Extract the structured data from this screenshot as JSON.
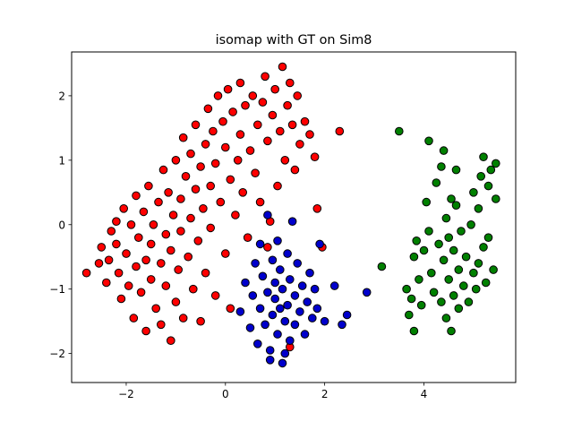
{
  "chart_data": {
    "type": "scatter",
    "title": "isomap with GT on Sim8",
    "xlabel": "",
    "ylabel": "",
    "xlim": [
      -3.1,
      5.85
    ],
    "ylim": [
      -2.45,
      2.68
    ],
    "xticks": [
      -2,
      0,
      2,
      4
    ],
    "xtick_labels": [
      "−2",
      "0",
      "2",
      "4"
    ],
    "yticks": [
      -2,
      -1,
      0,
      1,
      2
    ],
    "ytick_labels": [
      "−2",
      "−1",
      "0",
      "1",
      "2"
    ],
    "grid": false,
    "legend": "none",
    "series": [
      {
        "color": "#ff0000",
        "points": [
          [
            -2.8,
            -0.75
          ],
          [
            -2.55,
            -0.6
          ],
          [
            -2.5,
            -0.35
          ],
          [
            -2.4,
            -0.9
          ],
          [
            -2.35,
            -0.55
          ],
          [
            -2.3,
            -0.1
          ],
          [
            -2.2,
            0.05
          ],
          [
            -2.2,
            -0.3
          ],
          [
            -2.15,
            -0.75
          ],
          [
            -2.1,
            -1.15
          ],
          [
            -2.05,
            0.25
          ],
          [
            -2.0,
            -0.45
          ],
          [
            -1.95,
            -0.95
          ],
          [
            -1.9,
            0.0
          ],
          [
            -1.85,
            -1.45
          ],
          [
            -1.8,
            -0.65
          ],
          [
            -1.8,
            0.45
          ],
          [
            -1.75,
            -0.2
          ],
          [
            -1.7,
            -1.05
          ],
          [
            -1.65,
            0.2
          ],
          [
            -1.6,
            -0.55
          ],
          [
            -1.6,
            -1.65
          ],
          [
            -1.55,
            0.6
          ],
          [
            -1.5,
            -0.85
          ],
          [
            -1.5,
            -0.3
          ],
          [
            -1.45,
            0.0
          ],
          [
            -1.4,
            -1.3
          ],
          [
            -1.35,
            0.35
          ],
          [
            -1.3,
            -0.6
          ],
          [
            -1.3,
            -1.55
          ],
          [
            -1.25,
            0.85
          ],
          [
            -1.2,
            -0.15
          ],
          [
            -1.2,
            -0.95
          ],
          [
            -1.15,
            0.5
          ],
          [
            -1.1,
            -1.8
          ],
          [
            -1.1,
            -0.4
          ],
          [
            -1.05,
            0.15
          ],
          [
            -1.0,
            1.0
          ],
          [
            -1.0,
            -1.2
          ],
          [
            -0.95,
            -0.7
          ],
          [
            -0.9,
            0.4
          ],
          [
            -0.9,
            -0.1
          ],
          [
            -0.85,
            1.35
          ],
          [
            -0.85,
            -1.45
          ],
          [
            -0.8,
            0.75
          ],
          [
            -0.75,
            -0.5
          ],
          [
            -0.7,
            0.1
          ],
          [
            -0.7,
            1.1
          ],
          [
            -0.65,
            -1.0
          ],
          [
            -0.6,
            0.55
          ],
          [
            -0.6,
            1.55
          ],
          [
            -0.55,
            -0.25
          ],
          [
            -0.5,
            0.9
          ],
          [
            -0.5,
            -1.5
          ],
          [
            -0.45,
            0.25
          ],
          [
            -0.4,
            1.25
          ],
          [
            -0.4,
            -0.75
          ],
          [
            -0.35,
            1.8
          ],
          [
            -0.3,
            0.6
          ],
          [
            -0.3,
            -0.05
          ],
          [
            -0.25,
            1.45
          ],
          [
            -0.2,
            -1.1
          ],
          [
            -0.2,
            0.95
          ],
          [
            -0.15,
            2.0
          ],
          [
            -0.1,
            0.35
          ],
          [
            -0.05,
            1.6
          ],
          [
            0.0,
            -0.45
          ],
          [
            0.0,
            1.2
          ],
          [
            0.05,
            2.1
          ],
          [
            0.1,
            0.7
          ],
          [
            0.1,
            -1.3
          ],
          [
            0.15,
            1.75
          ],
          [
            0.2,
            0.15
          ],
          [
            0.25,
            1.0
          ],
          [
            0.3,
            2.2
          ],
          [
            0.3,
            1.4
          ],
          [
            0.35,
            0.5
          ],
          [
            0.4,
            1.85
          ],
          [
            0.45,
            -0.2
          ],
          [
            0.5,
            1.15
          ],
          [
            0.55,
            2.0
          ],
          [
            0.6,
            0.8
          ],
          [
            0.65,
            1.55
          ],
          [
            0.7,
            0.35
          ],
          [
            0.75,
            1.9
          ],
          [
            0.8,
            2.3
          ],
          [
            0.85,
            1.3
          ],
          [
            0.9,
            0.05
          ],
          [
            0.95,
            1.7
          ],
          [
            1.0,
            2.1
          ],
          [
            1.05,
            0.6
          ],
          [
            1.1,
            1.45
          ],
          [
            1.15,
            2.45
          ],
          [
            1.2,
            1.0
          ],
          [
            1.25,
            1.85
          ],
          [
            1.3,
            2.2
          ],
          [
            1.35,
            1.55
          ],
          [
            1.4,
            0.85
          ],
          [
            1.45,
            2.0
          ],
          [
            1.5,
            1.25
          ],
          [
            1.6,
            1.6
          ],
          [
            1.7,
            1.4
          ],
          [
            1.8,
            1.05
          ],
          [
            2.3,
            1.45
          ],
          [
            1.95,
            -0.35
          ],
          [
            1.85,
            0.25
          ],
          [
            0.85,
            -0.35
          ],
          [
            1.3,
            -1.9
          ]
        ]
      },
      {
        "color": "#0000cc",
        "points": [
          [
            0.3,
            -1.35
          ],
          [
            0.4,
            -0.9
          ],
          [
            0.5,
            -1.6
          ],
          [
            0.55,
            -1.1
          ],
          [
            0.6,
            -0.6
          ],
          [
            0.65,
            -1.85
          ],
          [
            0.7,
            -1.3
          ],
          [
            0.7,
            -0.3
          ],
          [
            0.75,
            -0.8
          ],
          [
            0.8,
            -1.55
          ],
          [
            0.85,
            -1.05
          ],
          [
            0.85,
            0.15
          ],
          [
            0.9,
            -1.95
          ],
          [
            0.95,
            -0.55
          ],
          [
            0.95,
            -1.4
          ],
          [
            1.0,
            -1.15
          ],
          [
            1.0,
            -0.9
          ],
          [
            1.05,
            -1.7
          ],
          [
            1.05,
            -0.25
          ],
          [
            1.1,
            -1.3
          ],
          [
            1.1,
            -0.7
          ],
          [
            1.15,
            -2.15
          ],
          [
            1.15,
            -1.0
          ],
          [
            1.2,
            -1.5
          ],
          [
            1.25,
            -0.45
          ],
          [
            1.25,
            -1.25
          ],
          [
            1.3,
            -0.85
          ],
          [
            1.3,
            -1.8
          ],
          [
            1.35,
            0.05
          ],
          [
            1.4,
            -1.1
          ],
          [
            1.4,
            -1.55
          ],
          [
            1.45,
            -0.6
          ],
          [
            1.5,
            -1.35
          ],
          [
            1.55,
            -0.95
          ],
          [
            1.6,
            -1.7
          ],
          [
            1.65,
            -1.2
          ],
          [
            1.7,
            -0.75
          ],
          [
            1.75,
            -1.45
          ],
          [
            1.8,
            -1.0
          ],
          [
            1.85,
            -1.3
          ],
          [
            1.9,
            -0.3
          ],
          [
            2.0,
            -1.5
          ],
          [
            2.2,
            -0.95
          ],
          [
            2.35,
            -1.55
          ],
          [
            2.45,
            -1.4
          ],
          [
            2.85,
            -1.05
          ],
          [
            1.2,
            -2.0
          ],
          [
            0.9,
            -2.1
          ]
        ]
      },
      {
        "color": "#008000",
        "points": [
          [
            3.15,
            -0.65
          ],
          [
            3.5,
            1.45
          ],
          [
            3.65,
            -1.0
          ],
          [
            3.7,
            -1.4
          ],
          [
            3.75,
            -1.15
          ],
          [
            3.8,
            -0.5
          ],
          [
            3.8,
            -1.65
          ],
          [
            3.85,
            -0.25
          ],
          [
            3.9,
            -0.85
          ],
          [
            3.95,
            -1.25
          ],
          [
            4.0,
            -0.4
          ],
          [
            4.05,
            0.35
          ],
          [
            4.1,
            1.3
          ],
          [
            4.1,
            -0.1
          ],
          [
            4.15,
            -0.75
          ],
          [
            4.2,
            -1.05
          ],
          [
            4.25,
            0.65
          ],
          [
            4.3,
            -0.3
          ],
          [
            4.35,
            0.9
          ],
          [
            4.35,
            -1.2
          ],
          [
            4.4,
            -0.55
          ],
          [
            4.4,
            1.15
          ],
          [
            4.45,
            -1.45
          ],
          [
            4.45,
            0.1
          ],
          [
            4.5,
            -0.85
          ],
          [
            4.5,
            -0.2
          ],
          [
            4.55,
            -1.65
          ],
          [
            4.6,
            -0.4
          ],
          [
            4.6,
            -1.1
          ],
          [
            4.65,
            0.3
          ],
          [
            4.7,
            -0.7
          ],
          [
            4.7,
            -1.3
          ],
          [
            4.75,
            -0.1
          ],
          [
            4.8,
            -0.95
          ],
          [
            4.85,
            -0.5
          ],
          [
            4.9,
            -1.2
          ],
          [
            4.95,
            0.0
          ],
          [
            5.0,
            -0.75
          ],
          [
            5.0,
            0.5
          ],
          [
            5.05,
            -1.0
          ],
          [
            5.1,
            0.25
          ],
          [
            5.1,
            -0.6
          ],
          [
            5.15,
            0.75
          ],
          [
            5.2,
            -0.35
          ],
          [
            5.2,
            1.05
          ],
          [
            5.25,
            -0.9
          ],
          [
            5.3,
            0.6
          ],
          [
            5.3,
            -0.2
          ],
          [
            5.35,
            0.85
          ],
          [
            5.4,
            -0.7
          ],
          [
            5.45,
            0.4
          ],
          [
            5.45,
            0.95
          ],
          [
            4.55,
            0.4
          ],
          [
            4.65,
            0.85
          ]
        ]
      }
    ]
  }
}
